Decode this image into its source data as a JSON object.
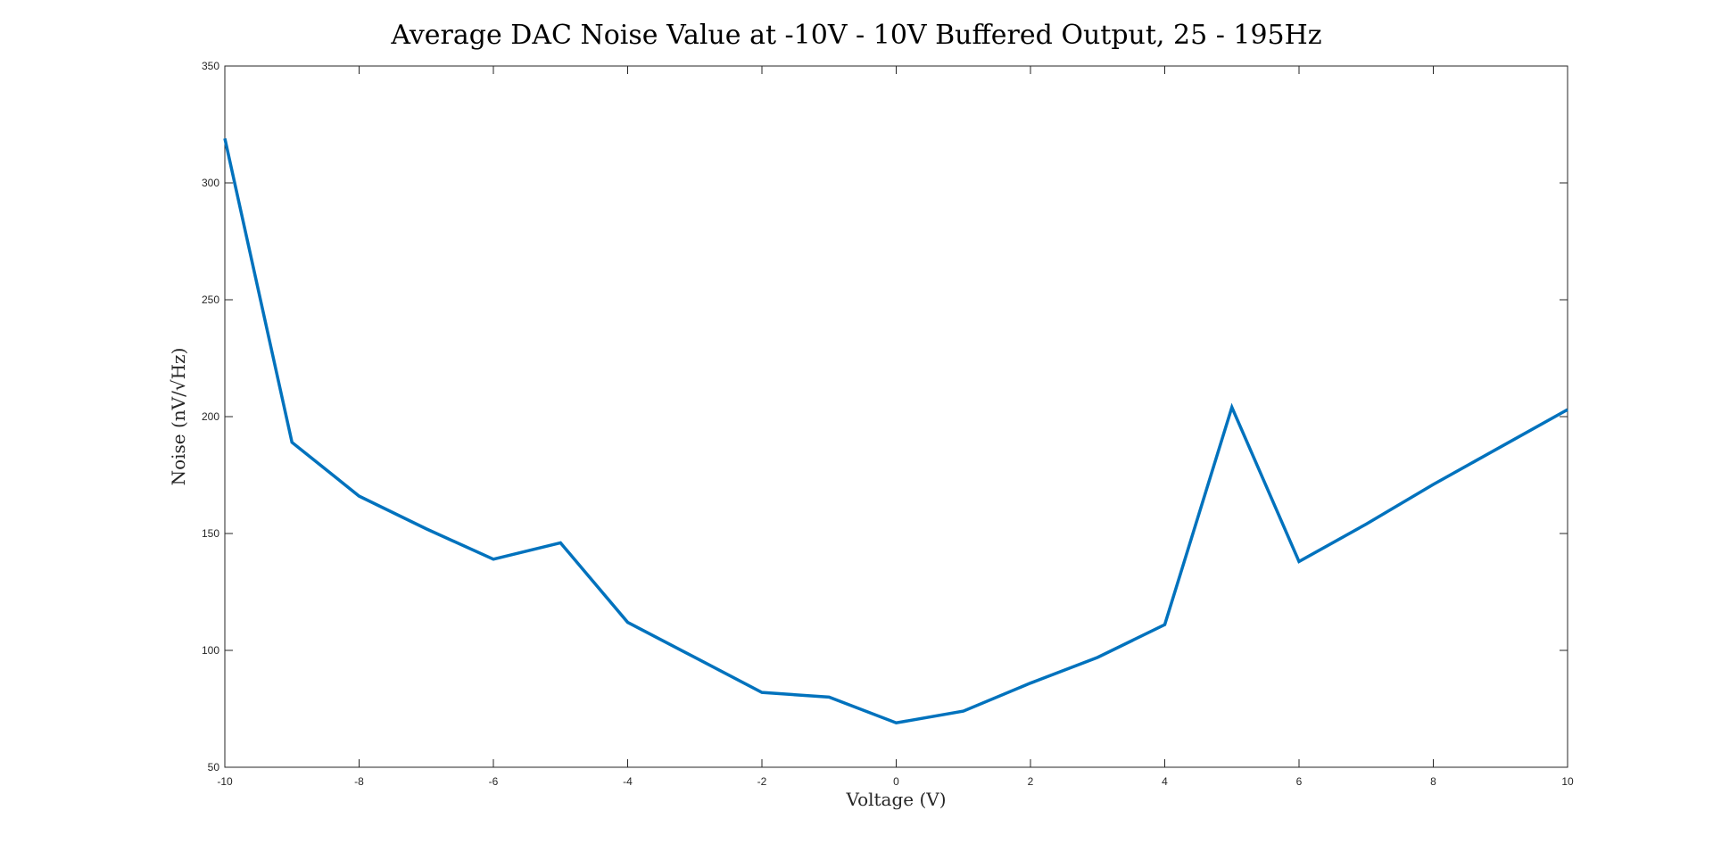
{
  "chart_data": {
    "type": "line",
    "title": "Average DAC Noise Value at -10V - 10V Buffered Output, 25 - 195Hz",
    "xlabel": "Voltage (V)",
    "ylabel": "Noise (nV/√Hz)",
    "xlim": [
      -10,
      10
    ],
    "ylim": [
      50,
      350
    ],
    "xticks": [
      -10,
      -8,
      -6,
      -4,
      -2,
      0,
      2,
      4,
      6,
      8,
      10
    ],
    "yticks": [
      50,
      100,
      150,
      200,
      250,
      300,
      350
    ],
    "grid": false,
    "series": [
      {
        "color": "#0072bd",
        "x": [
          -10,
          -9,
          -8,
          -7,
          -6,
          -5,
          -4,
          -3,
          -2,
          -1,
          0,
          1,
          2,
          3,
          4,
          5,
          6,
          7,
          8,
          9,
          10
        ],
        "y": [
          319,
          189,
          166,
          152,
          139,
          146,
          112,
          97,
          82,
          80,
          69,
          74,
          86,
          97,
          111,
          204,
          138,
          154,
          171,
          187,
          203
        ]
      }
    ]
  }
}
